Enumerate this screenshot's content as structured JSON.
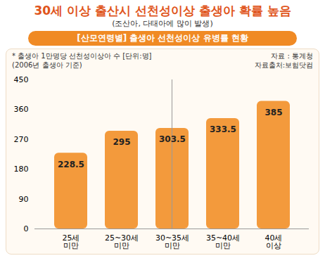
{
  "chart_data": {
    "type": "bar",
    "title": "30세 이상 출산시 선천성이상 출생아 확률 높음",
    "subtitle": "(조산아, 다태아에 많이 발생)",
    "annotations": [
      "[산모연령별] 출생아 선천성이상 유병률 현황",
      "* 출생아 1만명당 선천성이상아 수 [단위:명]",
      "(2006년 출생아 기준)",
      "자료 : 통계청",
      "자료출처:보험닷컴"
    ],
    "categories": [
      "25세\n미만",
      "25~30세\n미만",
      "30~35세\n미만",
      "35~40세\n미만",
      "40세\n이상"
    ],
    "values": [
      228.5,
      295,
      303.5,
      333.5,
      385
    ],
    "color": "#f39a3c",
    "ylim": [
      0,
      450
    ],
    "yticks": [
      0,
      90,
      180,
      270,
      360,
      450
    ],
    "grid": false,
    "data_labels": true
  }
}
